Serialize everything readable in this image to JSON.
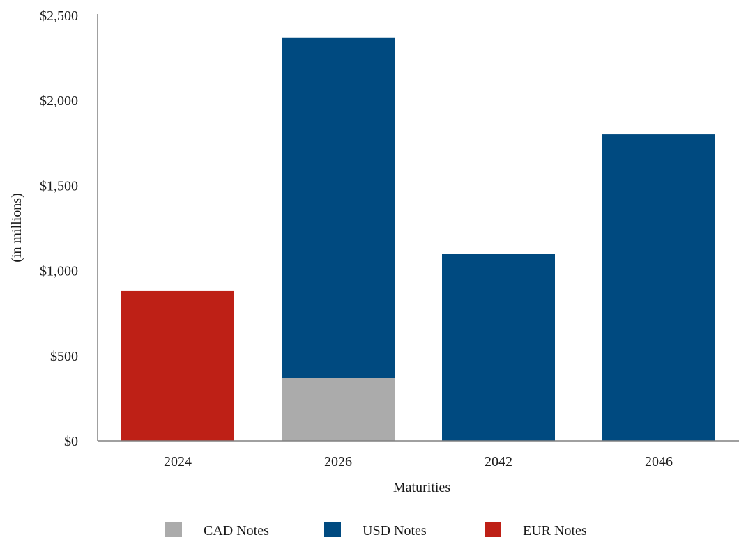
{
  "chart_data": {
    "type": "bar",
    "stacked": true,
    "categories": [
      "2024",
      "2026",
      "2042",
      "2046"
    ],
    "series": [
      {
        "name": "CAD Notes",
        "color": "#ababab",
        "values": [
          0,
          370,
          0,
          0
        ]
      },
      {
        "name": "USD Notes",
        "color": "#004a80",
        "values": [
          0,
          2000,
          1100,
          1800
        ]
      },
      {
        "name": "EUR Notes",
        "color": "#be2016",
        "values": [
          880,
          0,
          0,
          0
        ]
      }
    ],
    "title": "",
    "xlabel": "Maturities",
    "ylabel": "(in millions)",
    "ylim": [
      0,
      2500
    ],
    "yticks": [
      0,
      500,
      1000,
      1500,
      2000,
      2500
    ],
    "ytick_labels": [
      "$0",
      "$500",
      "$1,000",
      "$1,500",
      "$2,000",
      "$2,500"
    ],
    "grid": false,
    "legend_position": "bottom-center"
  }
}
